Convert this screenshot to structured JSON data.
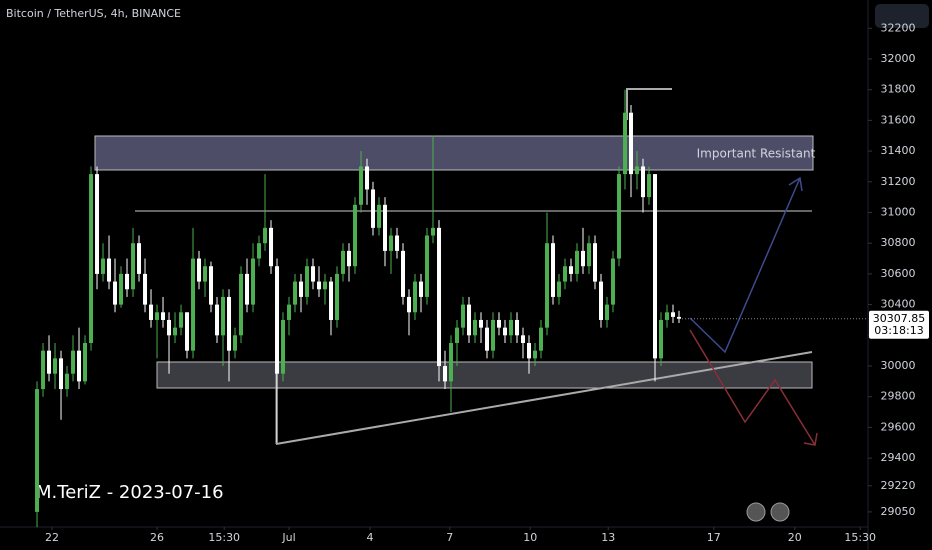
{
  "chart_data": {
    "type": "candlestick",
    "title": "Bitcoin / TetherUS, 4h, BINANCE",
    "watermark": "M.TeriZ - 2023-07-16",
    "annotation": "Important Resistant",
    "last_price": 30307.85,
    "countdown": "03:18:13",
    "up_color": "#4caf50",
    "down_color": "#ffffff",
    "ylim": [
      28932,
      32384
    ],
    "yticks": [
      32200,
      32000,
      31800,
      31600,
      31400,
      31200,
      31000,
      30800,
      30600,
      30400,
      30200,
      30000,
      29800,
      29600,
      29400,
      29220,
      29050
    ],
    "xlim": [
      -6.17,
      138.5
    ],
    "xticks": [
      {
        "value": 2.5,
        "label": "22"
      },
      {
        "value": 20,
        "label": "26"
      },
      {
        "value": 31.2,
        "label": "15:30"
      },
      {
        "value": 42,
        "label": "Jul"
      },
      {
        "value": 55.5,
        "label": "4"
      },
      {
        "value": 68.8,
        "label": "7"
      },
      {
        "value": 82.2,
        "label": "10"
      },
      {
        "value": 95.2,
        "label": "13"
      },
      {
        "value": 112.8,
        "label": "17"
      },
      {
        "value": 126.3,
        "label": "20"
      },
      {
        "value": 137.2,
        "label": "15:30"
      }
    ],
    "ohlc": [
      [
        29050,
        29900,
        28950,
        29850
      ],
      [
        29850,
        30150,
        29800,
        30100
      ],
      [
        30100,
        30200,
        29900,
        29950
      ],
      [
        29950,
        30150,
        29850,
        30050
      ],
      [
        30050,
        30100,
        29650,
        29850
      ],
      [
        29850,
        30000,
        29800,
        29950
      ],
      [
        29950,
        30200,
        29900,
        30100
      ],
      [
        30100,
        30250,
        29850,
        29900
      ],
      [
        29900,
        30200,
        29880,
        30150
      ],
      [
        30150,
        31300,
        30100,
        31250
      ],
      [
        31250,
        31300,
        30500,
        30600
      ],
      [
        30600,
        30800,
        30550,
        30700
      ],
      [
        30700,
        30850,
        30500,
        30550
      ],
      [
        30550,
        30700,
        30350,
        30400
      ],
      [
        30400,
        30650,
        30380,
        30600
      ],
      [
        30600,
        30700,
        30450,
        30500
      ],
      [
        30500,
        30900,
        30450,
        30800
      ],
      [
        30800,
        30850,
        30550,
        30600
      ],
      [
        30600,
        30700,
        30350,
        30400
      ],
      [
        30400,
        30500,
        30250,
        30300
      ],
      [
        30300,
        30400,
        30050,
        30350
      ],
      [
        30350,
        30450,
        30250,
        30300
      ],
      [
        30300,
        30350,
        29950,
        30200
      ],
      [
        30200,
        30350,
        30150,
        30250
      ],
      [
        30250,
        30400,
        30200,
        30350
      ],
      [
        30350,
        30350,
        30050,
        30100
      ],
      [
        30100,
        30900,
        30050,
        30700
      ],
      [
        30700,
        30750,
        30500,
        30550
      ],
      [
        30550,
        30700,
        30450,
        30650
      ],
      [
        30650,
        30680,
        30350,
        30400
      ],
      [
        30400,
        30450,
        30150,
        30200
      ],
      [
        30200,
        30500,
        30000,
        30450
      ],
      [
        30450,
        30500,
        29900,
        30100
      ],
      [
        30100,
        30250,
        30050,
        30200
      ],
      [
        30200,
        30650,
        30150,
        30600
      ],
      [
        30600,
        30700,
        30350,
        30400
      ],
      [
        30400,
        30800,
        30350,
        30700
      ],
      [
        30700,
        30850,
        30650,
        30800
      ],
      [
        30800,
        31250,
        30750,
        30900
      ],
      [
        30900,
        30950,
        30600,
        30650
      ],
      [
        30650,
        30700,
        29500,
        29950
      ],
      [
        29950,
        30350,
        29900,
        30300
      ],
      [
        30300,
        30450,
        30200,
        30400
      ],
      [
        30400,
        30600,
        30350,
        30550
      ],
      [
        30550,
        30600,
        30350,
        30450
      ],
      [
        30450,
        30700,
        30400,
        30650
      ],
      [
        30650,
        30700,
        30500,
        30550
      ],
      [
        30550,
        30650,
        30450,
        30500
      ],
      [
        30500,
        30600,
        30400,
        30550
      ],
      [
        30550,
        30580,
        30200,
        30300
      ],
      [
        30300,
        30650,
        30250,
        30600
      ],
      [
        30600,
        30800,
        30550,
        30750
      ],
      [
        30750,
        30800,
        30550,
        30650
      ],
      [
        30650,
        31100,
        30600,
        31050
      ],
      [
        31050,
        31400,
        31000,
        31300
      ],
      [
        31300,
        31350,
        31050,
        31150
      ],
      [
        31150,
        31200,
        30850,
        30900
      ],
      [
        30900,
        31100,
        30850,
        31050
      ],
      [
        31050,
        31100,
        30650,
        30750
      ],
      [
        30750,
        30900,
        30600,
        30850
      ],
      [
        30850,
        30900,
        30700,
        30750
      ],
      [
        30750,
        30800,
        30400,
        30450
      ],
      [
        30450,
        30500,
        30200,
        30350
      ],
      [
        30350,
        30600,
        30300,
        30550
      ],
      [
        30550,
        30600,
        30350,
        30450
      ],
      [
        30450,
        30900,
        30400,
        30850
      ],
      [
        30850,
        31500,
        30800,
        30900
      ],
      [
        30900,
        30950,
        29900,
        30000
      ],
      [
        30000,
        30100,
        29850,
        29900
      ],
      [
        29900,
        30200,
        29700,
        30150
      ],
      [
        30150,
        30300,
        30000,
        30250
      ],
      [
        30250,
        30450,
        30200,
        30400
      ],
      [
        30400,
        30450,
        30150,
        30200
      ],
      [
        30200,
        30350,
        30150,
        30300
      ],
      [
        30300,
        30350,
        30150,
        30250
      ],
      [
        30250,
        30300,
        30050,
        30100
      ],
      [
        30100,
        30350,
        30050,
        30300
      ],
      [
        30300,
        30350,
        30200,
        30250
      ],
      [
        30250,
        30300,
        30150,
        30200
      ],
      [
        30200,
        30350,
        30150,
        30300
      ],
      [
        30300,
        30350,
        30150,
        30200
      ],
      [
        30200,
        30250,
        30050,
        30150
      ],
      [
        30150,
        30200,
        29950,
        30050
      ],
      [
        30050,
        30150,
        30000,
        30100
      ],
      [
        30100,
        30300,
        30050,
        30250
      ],
      [
        30250,
        31000,
        30200,
        30800
      ],
      [
        30800,
        30850,
        30400,
        30450
      ],
      [
        30450,
        30600,
        30400,
        30550
      ],
      [
        30550,
        30700,
        30500,
        30650
      ],
      [
        30650,
        30700,
        30550,
        30600
      ],
      [
        30600,
        30800,
        30550,
        30750
      ],
      [
        30750,
        30900,
        30600,
        30650
      ],
      [
        30650,
        30850,
        30600,
        30800
      ],
      [
        30800,
        30850,
        30500,
        30550
      ],
      [
        30550,
        30600,
        30250,
        30300
      ],
      [
        30300,
        30450,
        30250,
        30400
      ],
      [
        30400,
        30750,
        30350,
        30700
      ],
      [
        30700,
        31300,
        30650,
        31250
      ],
      [
        31250,
        31800,
        31150,
        31650
      ],
      [
        31650,
        31700,
        31100,
        31250
      ],
      [
        31250,
        31400,
        31150,
        31300
      ],
      [
        31300,
        31350,
        31000,
        31100
      ],
      [
        31100,
        31300,
        31050,
        31250
      ],
      [
        31250,
        31250,
        29900,
        30050
      ],
      [
        30050,
        30350,
        30000,
        30300
      ],
      [
        30300,
        30400,
        30250,
        30350
      ],
      [
        30350,
        30400,
        30280,
        30320
      ],
      [
        30320,
        30360,
        30280,
        30308
      ]
    ]
  }
}
